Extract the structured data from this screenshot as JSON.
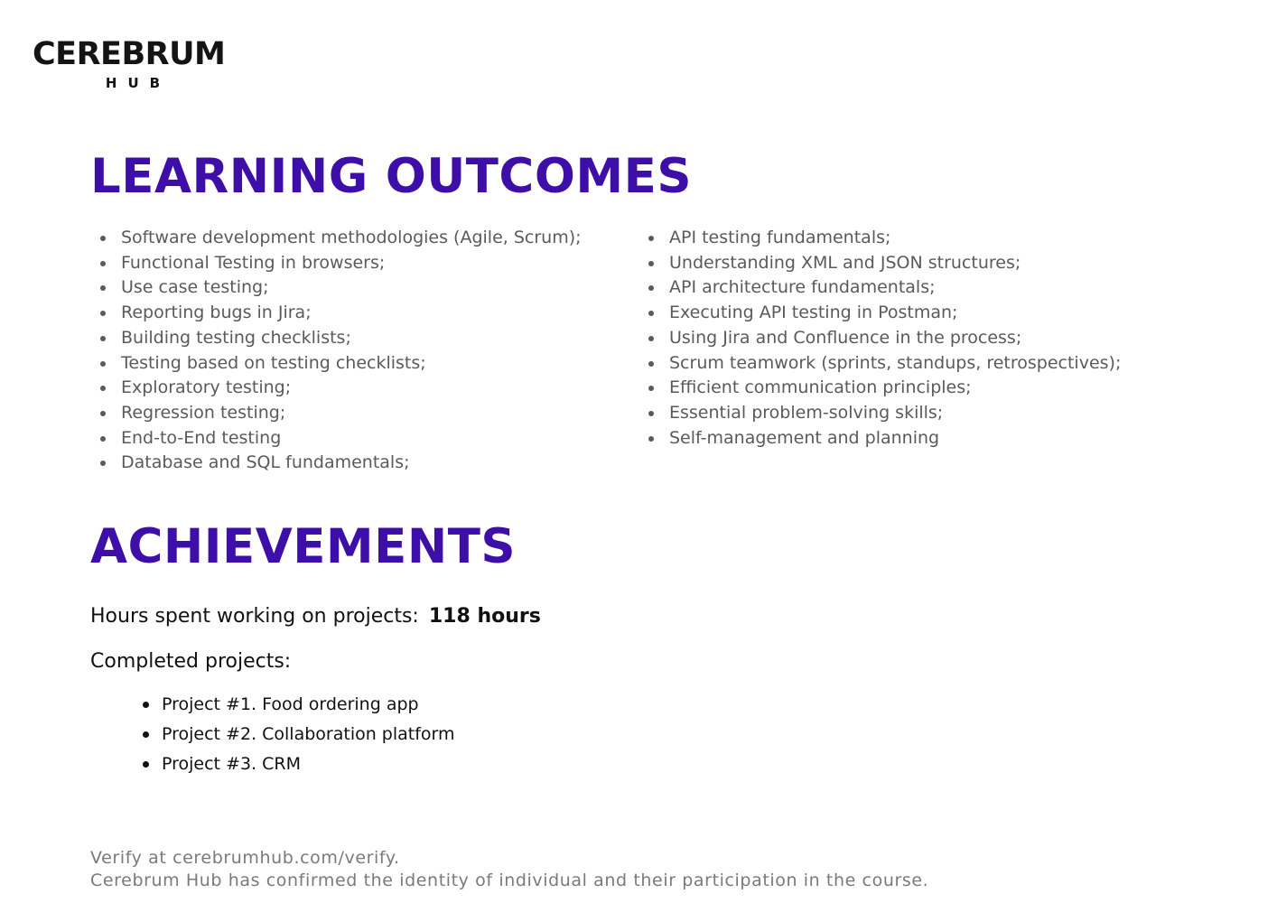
{
  "logo": {
    "main": "CEREBRUM",
    "sub": "HUB"
  },
  "learning_outcomes": {
    "title": "LEARNING OUTCOMES",
    "left": [
      "Software development methodologies (Agile, Scrum);",
      "Functional Testing in browsers;",
      "Use case testing;",
      "Reporting bugs in Jira;",
      "Building testing checklists;",
      "Testing based on testing checklists;",
      "Exploratory testing;",
      "Regression testing;",
      "End-to-End testing",
      "Database and SQL fundamentals;"
    ],
    "right": [
      "API testing fundamentals;",
      "Understanding XML and JSON structures;",
      "API architecture fundamentals;",
      "Executing API testing in Postman;",
      "Using Jira and Confluence in the process;",
      "Scrum teamwork (sprints, standups, retrospectives);",
      "Efficient communication principles;",
      "Essential problem-solving skills;",
      "Self-management and planning"
    ]
  },
  "achievements": {
    "title": "ACHIEVEMENTS",
    "hours_label": "Hours spent working on projects:",
    "hours_value": "118 hours",
    "completed_label": "Completed projects:",
    "projects": [
      "Project #1. Food ordering app",
      "Project #2. Collaboration platform",
      "Project #3. CRM"
    ]
  },
  "footer": {
    "line1": "Verify at cerebrumhub.com/verify.",
    "line2": "Cerebrum Hub has confirmed the identity of individual and their participation in the course."
  },
  "colors": {
    "accent": "#3d0fa8",
    "body_text": "#111111",
    "muted_text": "#5a5a5a",
    "footer_text": "#7a7a7a"
  }
}
